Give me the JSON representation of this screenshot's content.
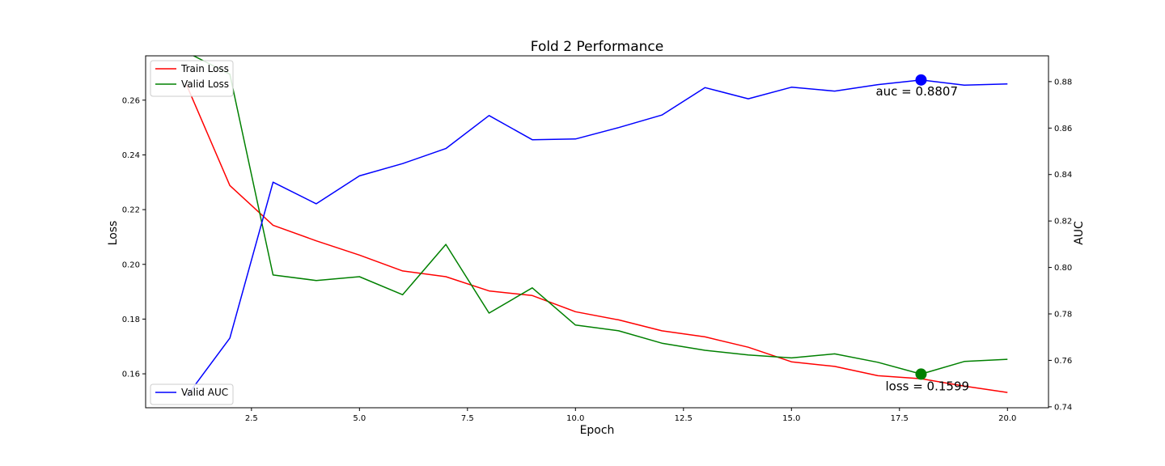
{
  "chart_data": {
    "type": "line",
    "title": "Fold 2 Performance",
    "xlabel": "Epoch",
    "ylabel_left": "Loss",
    "ylabel_right": "AUC",
    "x": [
      1,
      2,
      3,
      4,
      5,
      6,
      7,
      8,
      9,
      10,
      11,
      12,
      13,
      14,
      15,
      16,
      17,
      18,
      19,
      20
    ],
    "xlim": [
      0.05,
      20.95
    ],
    "ylim_left": [
      0.1476,
      0.2762
    ],
    "ylim_right": [
      0.7396,
      0.8911
    ],
    "xticks": [
      2.5,
      5.0,
      7.5,
      10.0,
      12.5,
      15.0,
      17.5,
      20.0
    ],
    "xtick_labels": [
      "2.5",
      "5.0",
      "7.5",
      "10.0",
      "12.5",
      "15.0",
      "17.5",
      "20.0"
    ],
    "yticks_left": [
      0.16,
      0.18,
      0.2,
      0.22,
      0.24,
      0.26
    ],
    "ytick_labels_left": [
      "0.16",
      "0.18",
      "0.20",
      "0.22",
      "0.24",
      "0.26"
    ],
    "yticks_right": [
      0.74,
      0.76,
      0.78,
      0.8,
      0.82,
      0.84,
      0.86,
      0.88
    ],
    "ytick_labels_right": [
      "0.74",
      "0.76",
      "0.78",
      "0.80",
      "0.82",
      "0.84",
      "0.86",
      "0.88"
    ],
    "grid": false,
    "series": [
      {
        "name": "Train Loss",
        "axis": "left",
        "color": "#ff0000",
        "values": [
          0.2655,
          0.2288,
          0.2143,
          0.2086,
          0.2034,
          0.1976,
          0.1955,
          0.1903,
          0.1886,
          0.1827,
          0.1797,
          0.1757,
          0.1735,
          0.1697,
          0.1644,
          0.1627,
          0.1593,
          0.1582,
          0.1555,
          0.1532
        ]
      },
      {
        "name": "Valid Loss",
        "axis": "left",
        "color": "#008000",
        "values": [
          0.2775,
          0.2695,
          0.1961,
          0.1941,
          0.1955,
          0.1889,
          0.2073,
          0.1822,
          0.1914,
          0.1778,
          0.1757,
          0.1712,
          0.1686,
          0.1669,
          0.1658,
          0.1673,
          0.1642,
          0.1599,
          0.1645,
          0.1653
        ]
      },
      {
        "name": "Valid AUC",
        "axis": "right",
        "color": "#0000ff",
        "values": [
          0.7445,
          0.7696,
          0.8367,
          0.8274,
          0.8394,
          0.8447,
          0.8512,
          0.8654,
          0.855,
          0.8553,
          0.8602,
          0.8656,
          0.8774,
          0.8726,
          0.8776,
          0.8759,
          0.8787,
          0.8807,
          0.8785,
          0.879
        ]
      }
    ],
    "legend_left_axis": {
      "placement": "upper-left",
      "entries": [
        "Train Loss",
        "Valid Loss"
      ]
    },
    "legend_right_axis": {
      "placement": "lower-left",
      "entries": [
        "Valid AUC"
      ]
    },
    "annotations": [
      {
        "text": "auc = 0.8807",
        "x": 18,
        "y": 0.8807,
        "axis": "right",
        "marker_color": "#0000ff"
      },
      {
        "text": "loss = 0.1599",
        "x": 18,
        "y": 0.1599,
        "axis": "left",
        "marker_color": "#008000"
      }
    ]
  }
}
